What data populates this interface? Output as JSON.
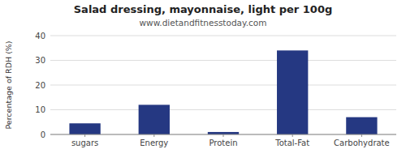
{
  "chart_data": {
    "type": "bar",
    "title": "Salad dressing, mayonnaise, light per 100g",
    "subtitle": "www.dietandfitnesstoday.com",
    "categories": [
      "sugars",
      "Energy",
      "Protein",
      "Total-Fat",
      "Carbohydrate"
    ],
    "values": [
      4.5,
      12.0,
      1.0,
      34.0,
      7.0
    ],
    "color": "#253882",
    "ylabel": "Percentage of RDH (%)",
    "ylim": [
      0,
      40
    ],
    "yticks": [
      0,
      10,
      20,
      30,
      40
    ],
    "grid": true
  }
}
